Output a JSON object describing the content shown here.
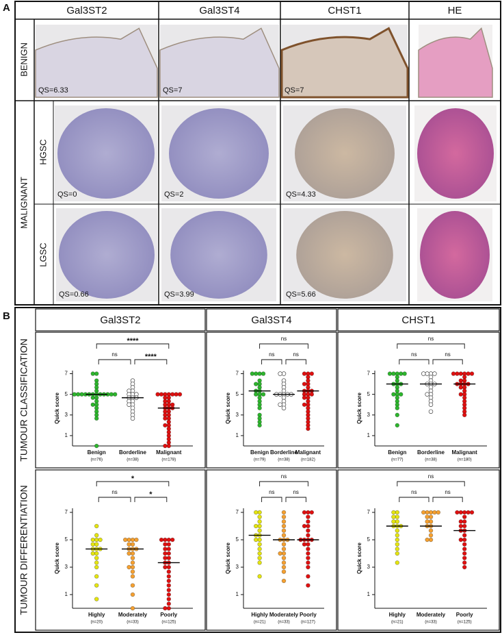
{
  "panel_a": {
    "label": "A",
    "columns": [
      "Gal3ST2",
      "Gal3ST4",
      "CHST1",
      "HE"
    ],
    "benign": "BENIGN",
    "malignant": "MALIGNANT",
    "subtypes": [
      "HGSC",
      "LGSC"
    ],
    "scores": {
      "benign": [
        "QS=6.33",
        "QS=7",
        "QS=7"
      ],
      "hgsc": [
        "QS=0",
        "QS=2",
        "QS=4.33"
      ],
      "lgsc": [
        "QS=0.66",
        "QS=3.99",
        "QS=5.66"
      ]
    }
  },
  "panel_b": {
    "label": "B",
    "columns": [
      "Gal3ST2",
      "Gal3ST4",
      "CHST1"
    ],
    "rows": [
      "TUMOUR CLASSIFICATION",
      "TUMOUR DIFFERENTIATION"
    ]
  },
  "chart_data": [
    {
      "type": "dot_plot",
      "ylabel": "Quick score",
      "ylim": [
        0,
        7.3
      ],
      "yticks": [
        1,
        3,
        5,
        7
      ],
      "groups": [
        {
          "label": "Benign",
          "n": "(n=76)",
          "color": "#2db52d",
          "values": [
            7,
            7,
            6.33,
            6,
            5.67,
            5.33,
            5,
            5,
            5,
            5,
            5,
            5,
            5,
            5,
            5,
            5,
            5,
            5,
            4.67,
            4.67,
            4.33,
            4,
            4,
            3.67,
            3.33,
            3,
            2.67,
            0
          ],
          "median": 5
        },
        {
          "label": "Borderline",
          "n": "(n=38)",
          "color": "#ffffff",
          "values": [
            6.33,
            6,
            5.67,
            5.33,
            5.33,
            5,
            5,
            5,
            4.67,
            4.67,
            4.67,
            4.33,
            4.33,
            4,
            4,
            3.67,
            3.33,
            3,
            2.67
          ],
          "median": 4.67
        },
        {
          "label": "Malignant",
          "n": "(n=178)",
          "color": "#e01010",
          "values": [
            5,
            5,
            5,
            5,
            5,
            5,
            5,
            4.67,
            4.67,
            4.33,
            4.33,
            4,
            4,
            4,
            3.67,
            3.67,
            3.67,
            3.33,
            3.33,
            3,
            3,
            2.67,
            2.67,
            2.33,
            2,
            2,
            1.67,
            1.33,
            1,
            0.67,
            0.33,
            0,
            0
          ],
          "median": 3.67
        }
      ],
      "brackets": [
        {
          "from": 0,
          "to": 1,
          "label": "ns"
        },
        {
          "from": 1,
          "to": 2,
          "label": "****"
        },
        {
          "from": 0,
          "to": 2,
          "label": "****"
        }
      ]
    },
    {
      "type": "dot_plot",
      "ylabel": "Quick score",
      "ylim": [
        0,
        7.3
      ],
      "yticks": [
        1,
        3,
        5,
        7
      ],
      "groups": [
        {
          "label": "Benign",
          "n": "(n=79)",
          "color": "#2db52d",
          "values": [
            7,
            7,
            7,
            7,
            6.33,
            6,
            6,
            5.67,
            5.33,
            5.33,
            5,
            5,
            5,
            4.67,
            4.33,
            4,
            3.67,
            3,
            2.67,
            2.33,
            2
          ],
          "median": 5.33
        },
        {
          "label": "Borderline",
          "n": "(n=38)",
          "color": "#ffffff",
          "values": [
            7,
            7,
            6.33,
            6,
            5.67,
            5.33,
            5,
            5,
            5,
            5,
            5,
            4.67,
            4.33,
            4,
            4,
            3.67
          ],
          "median": 5
        },
        {
          "label": "Malignant",
          "n": "(n=182)",
          "color": "#e01010",
          "values": [
            7,
            7,
            7,
            6.67,
            6.33,
            6,
            6,
            5.67,
            5.33,
            5.33,
            5.33,
            5,
            5,
            5,
            4.67,
            4.67,
            4.33,
            4,
            4,
            3.67,
            3.33,
            3,
            2.67,
            2.33,
            2,
            1.67
          ],
          "median": 5.33
        }
      ],
      "brackets": [
        {
          "from": 0,
          "to": 1,
          "label": "ns"
        },
        {
          "from": 1,
          "to": 2,
          "label": "ns"
        },
        {
          "from": 0,
          "to": 2,
          "label": "ns"
        }
      ]
    },
    {
      "type": "dot_plot",
      "ylabel": "Quick score",
      "ylim": [
        0,
        7.3
      ],
      "yticks": [
        1,
        3,
        5,
        7
      ],
      "groups": [
        {
          "label": "Benign",
          "n": "(n=77)",
          "color": "#2db52d",
          "values": [
            7,
            7,
            7,
            7,
            7,
            6.67,
            6.33,
            6,
            6,
            6,
            5.67,
            5.33,
            5,
            5,
            5,
            4.67,
            4.33,
            4,
            3.67,
            3,
            2
          ],
          "median": 6
        },
        {
          "label": "Borderline",
          "n": "(n=38)",
          "color": "#ffffff",
          "values": [
            7,
            7,
            7,
            7,
            6.67,
            6.33,
            6,
            6,
            6,
            5.67,
            5.33,
            5,
            5,
            4.67,
            4.33,
            4,
            3.33
          ],
          "median": 6
        },
        {
          "label": "Malignant",
          "n": "(n=180)",
          "color": "#e01010",
          "values": [
            7,
            7,
            7,
            7,
            7,
            7,
            6.67,
            6.33,
            6.33,
            6,
            6,
            6,
            6,
            5.67,
            5.67,
            5.33,
            5,
            5,
            4.67,
            4.33,
            4,
            3.67,
            3.33,
            3
          ],
          "median": 6
        }
      ],
      "brackets": [
        {
          "from": 0,
          "to": 1,
          "label": "ns"
        },
        {
          "from": 1,
          "to": 2,
          "label": "ns"
        },
        {
          "from": 0,
          "to": 2,
          "label": "ns"
        }
      ]
    },
    {
      "type": "dot_plot",
      "ylabel": "Quick score",
      "ylim": [
        0,
        7.3
      ],
      "yticks": [
        1,
        3,
        5,
        7
      ],
      "groups": [
        {
          "label": "Highly",
          "n": "(n=20)",
          "color": "#e5e510",
          "values": [
            6,
            5.33,
            5,
            5,
            5,
            4.67,
            4.67,
            4.33,
            4.33,
            4.33,
            4,
            4,
            3.67,
            3.33,
            3,
            2.33,
            1.67,
            0.67
          ],
          "median": 4.33
        },
        {
          "label": "Moderately",
          "n": "(n=33)",
          "color": "#f5a030",
          "values": [
            5,
            5,
            5,
            5,
            4.67,
            4.67,
            4.33,
            4.33,
            4.33,
            4,
            4,
            3.67,
            3.33,
            3,
            3,
            2.67,
            2.33,
            1.67,
            1,
            0
          ],
          "median": 4.33
        },
        {
          "label": "Poorly",
          "n": "(n=125)",
          "color": "#e01010",
          "values": [
            5,
            5,
            5,
            5,
            4.67,
            4.67,
            4.33,
            4.33,
            4,
            4,
            3.67,
            3.67,
            3.33,
            3.33,
            3,
            3,
            2.67,
            2.33,
            2,
            1.67,
            1.33,
            1,
            0.67,
            0.33,
            0,
            0
          ],
          "median": 3.33
        }
      ],
      "brackets": [
        {
          "from": 0,
          "to": 1,
          "label": "ns"
        },
        {
          "from": 1,
          "to": 2,
          "label": "*"
        },
        {
          "from": 0,
          "to": 2,
          "label": "*"
        }
      ]
    },
    {
      "type": "dot_plot",
      "ylabel": "Quick score",
      "ylim": [
        0,
        7.3
      ],
      "yticks": [
        1,
        3,
        5,
        7
      ],
      "groups": [
        {
          "label": "Highly",
          "n": "(n=21)",
          "color": "#e5e510",
          "values": [
            7,
            7,
            6.67,
            6.33,
            6,
            6,
            5.67,
            5.33,
            5.33,
            5,
            5,
            4.67,
            4.33,
            4,
            3.67,
            3.33,
            2.33
          ],
          "median": 5.33
        },
        {
          "label": "Moderately",
          "n": "(n=33)",
          "color": "#f5a030",
          "values": [
            7,
            6.67,
            6.33,
            6,
            5.67,
            5.33,
            5,
            5,
            5,
            4.67,
            4.33,
            4,
            4,
            3.67,
            3.33,
            3,
            2.67,
            2
          ],
          "median": 5
        },
        {
          "label": "Poorly",
          "n": "(n=127)",
          "color": "#e01010",
          "values": [
            7,
            7,
            7,
            6.67,
            6.33,
            6,
            6,
            5.67,
            5.33,
            5,
            5,
            5,
            5,
            4.67,
            4.67,
            4.33,
            4,
            3.67,
            3.33,
            3,
            2.33,
            1.67
          ],
          "median": 5
        }
      ],
      "brackets": [
        {
          "from": 0,
          "to": 1,
          "label": "ns"
        },
        {
          "from": 1,
          "to": 2,
          "label": "ns"
        },
        {
          "from": 0,
          "to": 2,
          "label": "ns"
        }
      ]
    },
    {
      "type": "dot_plot",
      "ylabel": "Quick score",
      "ylim": [
        0,
        7.3
      ],
      "yticks": [
        1,
        3,
        5,
        7
      ],
      "groups": [
        {
          "label": "Highly",
          "n": "(n=21)",
          "color": "#e5e510",
          "values": [
            7,
            7,
            6.67,
            6.67,
            6.33,
            6.33,
            6,
            6,
            6,
            5.67,
            5.33,
            5,
            4.67,
            4.33,
            4,
            3.33
          ],
          "median": 6
        },
        {
          "label": "Moderately",
          "n": "(n=33)",
          "color": "#f5a030",
          "values": [
            7,
            7,
            7,
            7,
            7,
            6.67,
            6.67,
            6.33,
            6.33,
            6,
            6,
            5.67,
            5.33,
            5,
            5
          ],
          "median": 6
        },
        {
          "label": "Poorly",
          "n": "(n=125)",
          "color": "#e01010",
          "values": [
            7,
            7,
            7,
            7,
            7,
            6.67,
            6.33,
            6.33,
            6,
            6,
            5.67,
            5.67,
            5.33,
            5,
            5,
            4.67,
            4.33,
            4,
            3.67,
            3.33,
            3
          ],
          "median": 5.67
        }
      ],
      "brackets": [
        {
          "from": 0,
          "to": 1,
          "label": "ns"
        },
        {
          "from": 1,
          "to": 2,
          "label": "ns"
        },
        {
          "from": 0,
          "to": 2,
          "label": "ns"
        }
      ]
    }
  ]
}
